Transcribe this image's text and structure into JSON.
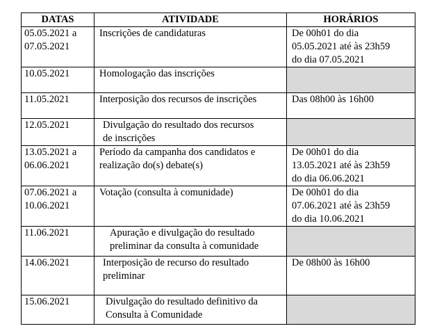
{
  "header": {
    "dates": "DATAS",
    "activity": "ATIVIDADE",
    "hours": "HORÁRIOS"
  },
  "rows": [
    {
      "date": [
        "05.05.2021 a",
        "07.05.2021"
      ],
      "activity": [
        "Inscrições de candidaturas"
      ],
      "hours": [
        "De 00h01 do dia",
        "05.05.2021 até às 23h59",
        "do dia 07.05.2021"
      ],
      "shaded": false
    },
    {
      "date": [
        "10.05.2021"
      ],
      "activity": [
        "Homologação das inscrições"
      ],
      "hours": [],
      "shaded": true
    },
    {
      "date": [
        "11.05.2021"
      ],
      "activity": [
        "Interposição dos recursos de inscrições"
      ],
      "hours": [
        "Das 08h00 às 16h00"
      ],
      "shaded": false
    },
    {
      "date": [
        "12.05.2021"
      ],
      "activity": [
        "Divulgação do resultado dos recursos",
        "de inscrições"
      ],
      "hours": [],
      "shaded": true
    },
    {
      "date": [
        "13.05.2021 a",
        "06.06.2021"
      ],
      "activity": [
        "Período da campanha dos candidatos e",
        "realização do(s) debate(s)"
      ],
      "hours": [
        "De 00h01 do dia",
        "13.05.2021 até às 23h59",
        "do dia 06.06.2021"
      ],
      "shaded": false
    },
    {
      "date": [
        "07.06.2021 a",
        "10.06.2021"
      ],
      "activity": [
        "Votação (consulta à comunidade)"
      ],
      "hours": [
        "De 00h01 do dia",
        "07.06.2021 até às 23h59",
        "do dia 10.06.2021"
      ],
      "shaded": false
    },
    {
      "date": [
        "11.06.2021"
      ],
      "activity": [
        "Apuração e divulgação do resultado",
        "preliminar da consulta à comunidade"
      ],
      "hours": [],
      "shaded": true
    },
    {
      "date": [
        "14.06.2021"
      ],
      "activity": [
        "Interposição de recurso do resultado",
        "preliminar"
      ],
      "hours": [
        "De 08h00 às 16h00"
      ],
      "shaded": false
    },
    {
      "date": [
        "15.06.2021"
      ],
      "activity": [
        "Divulgação do resultado definitivo da",
        "Consulta à Comunidade"
      ],
      "hours": [],
      "shaded": true
    }
  ]
}
